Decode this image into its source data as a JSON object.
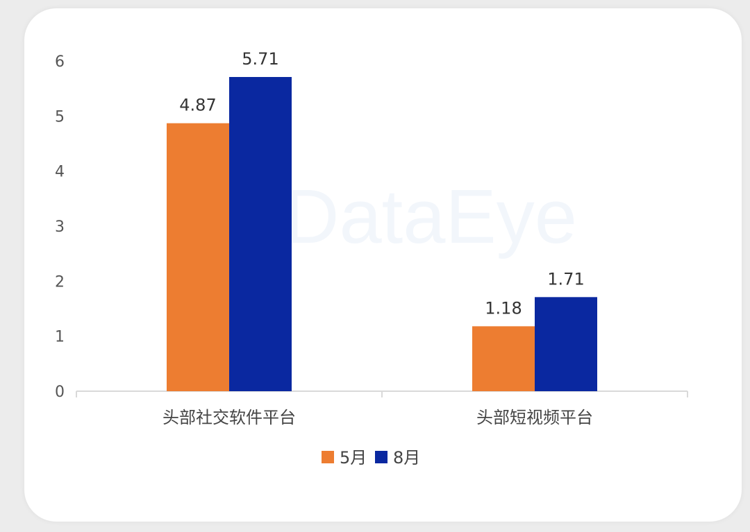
{
  "watermark": "DataEye",
  "chart_data": {
    "type": "bar",
    "title": "",
    "xlabel": "",
    "ylabel": "",
    "categories": [
      "头部社交软件平台",
      "头部短视频平台"
    ],
    "series": [
      {
        "name": "5月",
        "values": [
          4.87,
          1.18
        ],
        "color": "#ED7D31"
      },
      {
        "name": "8月",
        "values": [
          5.71,
          1.71
        ],
        "color": "#0A28A0"
      }
    ],
    "data_labels": [
      [
        "4.87",
        "1.18"
      ],
      [
        "5.71",
        "1.71"
      ]
    ],
    "ylim": [
      0,
      6
    ],
    "yticks": [
      0,
      1,
      2,
      3,
      4,
      5,
      6
    ],
    "grid": false,
    "legend": "bottom-center"
  }
}
